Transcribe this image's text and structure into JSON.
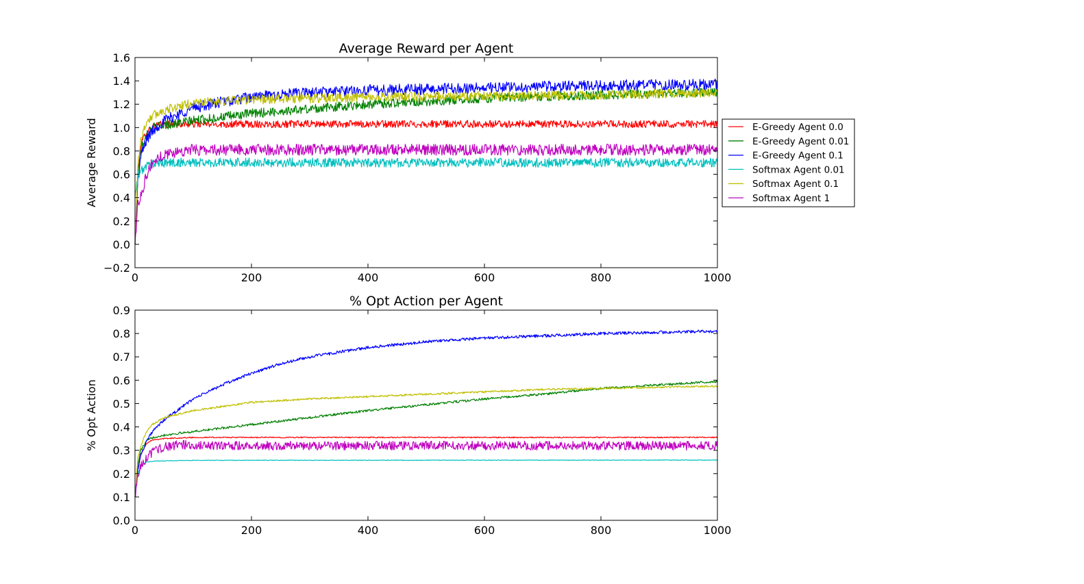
{
  "figure": {
    "legend": {
      "placement": "right of top chart",
      "entries": [
        {
          "label": "E-Greedy Agent 0.0",
          "color": "#ff0000"
        },
        {
          "label": "E-Greedy Agent 0.01",
          "color": "#008000"
        },
        {
          "label": "E-Greedy Agent 0.1",
          "color": "#0000ff"
        },
        {
          "label": "Softmax Agent 0.01",
          "color": "#00bfbf"
        },
        {
          "label": "Softmax Agent 0.1",
          "color": "#bfbf00"
        },
        {
          "label": "Softmax Agent 1",
          "color": "#bf00bf"
        }
      ]
    }
  },
  "chart_data": [
    {
      "type": "line",
      "title": "Average Reward per Agent",
      "xlabel": "",
      "ylabel": "Average Reward",
      "xlim": [
        0,
        1000
      ],
      "ylim": [
        -0.2,
        1.6
      ],
      "xticks": [
        "0",
        "200",
        "400",
        "600",
        "800",
        "1000"
      ],
      "yticks": [
        "−0.2",
        "0.0",
        "0.2",
        "0.4",
        "0.6",
        "0.8",
        "1.0",
        "1.2",
        "1.4",
        "1.6"
      ],
      "grid": false,
      "series": [
        {
          "name": "E-Greedy Agent 0.0",
          "color": "#ff0000",
          "noise": 0.02,
          "x": [
            0,
            5,
            10,
            20,
            30,
            50,
            100,
            200,
            400,
            600,
            800,
            1000
          ],
          "y": [
            0.0,
            0.6,
            0.85,
            0.97,
            1.01,
            1.03,
            1.03,
            1.03,
            1.03,
            1.03,
            1.03,
            1.03
          ]
        },
        {
          "name": "E-Greedy Agent 0.01",
          "color": "#008000",
          "noise": 0.025,
          "x": [
            0,
            5,
            10,
            20,
            30,
            50,
            100,
            200,
            300,
            400,
            600,
            800,
            1000
          ],
          "y": [
            0.0,
            0.6,
            0.82,
            0.95,
            1.0,
            1.02,
            1.06,
            1.12,
            1.16,
            1.2,
            1.25,
            1.28,
            1.3
          ]
        },
        {
          "name": "E-Greedy Agent 0.1",
          "color": "#0000ff",
          "noise": 0.03,
          "x": [
            0,
            5,
            10,
            20,
            30,
            50,
            100,
            150,
            200,
            300,
            400,
            600,
            800,
            1000
          ],
          "y": [
            0.0,
            0.55,
            0.75,
            0.9,
            0.97,
            1.06,
            1.17,
            1.22,
            1.26,
            1.3,
            1.32,
            1.34,
            1.36,
            1.37
          ]
        },
        {
          "name": "Softmax Agent 0.01",
          "color": "#00bfbf",
          "noise": 0.025,
          "x": [
            0,
            5,
            10,
            20,
            30,
            50,
            100,
            1000
          ],
          "y": [
            0.4,
            0.58,
            0.63,
            0.67,
            0.69,
            0.7,
            0.7,
            0.7
          ]
        },
        {
          "name": "Softmax Agent 0.1",
          "color": "#bfbf00",
          "noise": 0.025,
          "x": [
            0,
            5,
            10,
            20,
            30,
            50,
            100,
            200,
            400,
            600,
            800,
            1000
          ],
          "y": [
            0.0,
            0.7,
            0.9,
            1.05,
            1.1,
            1.15,
            1.21,
            1.24,
            1.26,
            1.27,
            1.28,
            1.3
          ]
        },
        {
          "name": "Softmax Agent 1",
          "color": "#bf00bf",
          "noise": 0.03,
          "x": [
            0,
            5,
            10,
            20,
            30,
            50,
            80,
            100,
            1000
          ],
          "y": [
            0.0,
            0.35,
            0.42,
            0.6,
            0.7,
            0.77,
            0.8,
            0.81,
            0.81
          ]
        }
      ]
    },
    {
      "type": "line",
      "title": "% Opt Action per Agent",
      "xlabel": "",
      "ylabel": "% Opt Action",
      "xlim": [
        0,
        1000
      ],
      "ylim": [
        0.0,
        0.9
      ],
      "xticks": [
        "0",
        "200",
        "400",
        "600",
        "800",
        "1000"
      ],
      "yticks": [
        "0.0",
        "0.1",
        "0.2",
        "0.3",
        "0.4",
        "0.5",
        "0.6",
        "0.7",
        "0.8",
        "0.9"
      ],
      "grid": false,
      "series": [
        {
          "name": "E-Greedy Agent 0.0",
          "color": "#ff0000",
          "noise": 0.0015,
          "x": [
            0,
            5,
            10,
            20,
            30,
            50,
            100,
            1000
          ],
          "y": [
            0.1,
            0.22,
            0.28,
            0.33,
            0.345,
            0.35,
            0.355,
            0.355
          ]
        },
        {
          "name": "E-Greedy Agent 0.01",
          "color": "#008000",
          "noise": 0.003,
          "x": [
            0,
            5,
            10,
            20,
            30,
            50,
            100,
            200,
            300,
            400,
            500,
            600,
            700,
            800,
            900,
            1000
          ],
          "y": [
            0.1,
            0.24,
            0.3,
            0.34,
            0.355,
            0.365,
            0.38,
            0.41,
            0.44,
            0.47,
            0.495,
            0.52,
            0.54,
            0.565,
            0.58,
            0.595
          ]
        },
        {
          "name": "E-Greedy Agent 0.1",
          "color": "#0000ff",
          "noise": 0.004,
          "x": [
            0,
            5,
            10,
            20,
            30,
            50,
            100,
            150,
            200,
            250,
            300,
            400,
            500,
            600,
            700,
            800,
            900,
            1000
          ],
          "y": [
            0.1,
            0.22,
            0.28,
            0.34,
            0.38,
            0.43,
            0.52,
            0.58,
            0.63,
            0.67,
            0.7,
            0.74,
            0.765,
            0.78,
            0.79,
            0.8,
            0.805,
            0.81
          ]
        },
        {
          "name": "Softmax Agent 0.01",
          "color": "#00bfbf",
          "noise": 0.0008,
          "x": [
            0,
            5,
            10,
            20,
            30,
            50,
            100,
            1000
          ],
          "y": [
            0.1,
            0.2,
            0.23,
            0.25,
            0.253,
            0.255,
            0.257,
            0.258
          ]
        },
        {
          "name": "Softmax Agent 0.1",
          "color": "#bfbf00",
          "noise": 0.0025,
          "x": [
            0,
            5,
            10,
            20,
            30,
            50,
            100,
            200,
            300,
            400,
            500,
            600,
            700,
            800,
            900,
            1000
          ],
          "y": [
            0.1,
            0.27,
            0.32,
            0.38,
            0.41,
            0.44,
            0.47,
            0.505,
            0.52,
            0.53,
            0.54,
            0.55,
            0.56,
            0.565,
            0.57,
            0.575
          ]
        },
        {
          "name": "Softmax Agent 1",
          "color": "#bf00bf",
          "noise": 0.012,
          "x": [
            0,
            5,
            10,
            20,
            30,
            50,
            80,
            100,
            1000
          ],
          "y": [
            0.1,
            0.2,
            0.23,
            0.27,
            0.29,
            0.315,
            0.325,
            0.32,
            0.32
          ]
        }
      ]
    }
  ]
}
